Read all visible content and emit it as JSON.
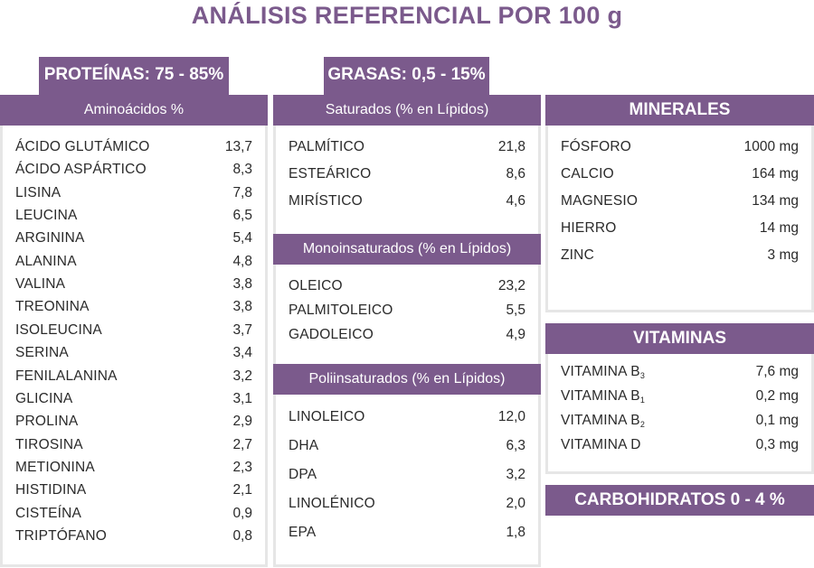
{
  "title": "ANÁLISIS REFERENCIAL POR 100 g",
  "proteinas": {
    "tab": "PROTEÍNAS: 75 - 85%",
    "header": "Aminoácidos %",
    "items": [
      {
        "name": "ÁCIDO GLUTÁMICO",
        "value": "13,7"
      },
      {
        "name": "ÁCIDO ASPÁRTICO",
        "value": "8,3"
      },
      {
        "name": "LISINA",
        "value": "7,8"
      },
      {
        "name": "LEUCINA",
        "value": "6,5"
      },
      {
        "name": "ARGININA",
        "value": "5,4"
      },
      {
        "name": "ALANINA",
        "value": "4,8"
      },
      {
        "name": "VALINA",
        "value": "3,8"
      },
      {
        "name": "TREONINA",
        "value": "3,8"
      },
      {
        "name": "ISOLEUCINA",
        "value": "3,7"
      },
      {
        "name": "SERINA",
        "value": "3,4"
      },
      {
        "name": "FENILALANINA",
        "value": "3,2"
      },
      {
        "name": "GLICINA",
        "value": "3,1"
      },
      {
        "name": "PROLINA",
        "value": "2,9"
      },
      {
        "name": "TIROSINA",
        "value": "2,7"
      },
      {
        "name": "METIONINA",
        "value": "2,3"
      },
      {
        "name": "HISTIDINA",
        "value": "2,1"
      },
      {
        "name": "CISTEÍNA",
        "value": "0,9"
      },
      {
        "name": "TRIPTÓFANO",
        "value": "0,8"
      }
    ]
  },
  "grasas": {
    "tab": "GRASAS: 0,5 - 15%",
    "saturados": {
      "header": "Saturados (% en Lípidos)",
      "items": [
        {
          "name": "PALMÍTICO",
          "value": "21,8"
        },
        {
          "name": "ESTEÁRICO",
          "value": "8,6"
        },
        {
          "name": "MIRÍSTICO",
          "value": "4,6"
        }
      ]
    },
    "mono": {
      "header": "Monoinsaturados (% en Lípidos)",
      "items": [
        {
          "name": "OLEICO",
          "value": "23,2"
        },
        {
          "name": "PALMITOLEICO",
          "value": "5,5"
        },
        {
          "name": "GADOLEICO",
          "value": "4,9"
        }
      ]
    },
    "poli": {
      "header": "Poliinsaturados  (% en Lípidos)",
      "items": [
        {
          "name": "LINOLEICO",
          "value": "12,0"
        },
        {
          "name": "DHA",
          "value": "6,3"
        },
        {
          "name": "DPA",
          "value": "3,2"
        },
        {
          "name": "LINOLÉNICO",
          "value": "2,0"
        },
        {
          "name": "EPA",
          "value": "1,8"
        }
      ]
    }
  },
  "minerales": {
    "header": "MINERALES",
    "items": [
      {
        "name": "FÓSFORO",
        "value": "1000 mg"
      },
      {
        "name": "CALCIO",
        "value": "164 mg"
      },
      {
        "name": "MAGNESIO",
        "value": "134 mg"
      },
      {
        "name": "HIERRO",
        "value": "14 mg"
      },
      {
        "name": "ZINC",
        "value": "3 mg"
      }
    ]
  },
  "vitaminas": {
    "header": "VITAMINAS",
    "items": [
      {
        "name": "VITAMINA B",
        "sub": "3",
        "value": "7,6 mg"
      },
      {
        "name": "VITAMINA B",
        "sub": "1",
        "value": "0,2 mg"
      },
      {
        "name": "VITAMINA B",
        "sub": "2",
        "value": "0,1 mg"
      },
      {
        "name": "VITAMINA D",
        "sub": "",
        "value": "0,3 mg"
      }
    ]
  },
  "carbohidratos": "CARBOHIDRATOS 0 - 4 %"
}
